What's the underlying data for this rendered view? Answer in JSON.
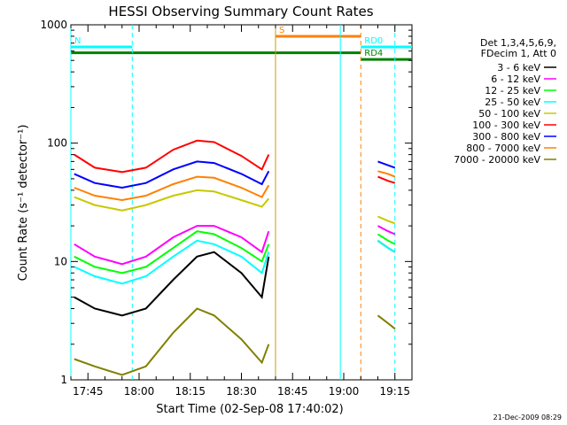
{
  "chart_data": {
    "type": "line",
    "title": "HESSI Observing Summary Count Rates",
    "xlabel": "Start Time (02-Sep-08 17:40:02)",
    "ylabel": "Count Rate (s⁻¹ detector⁻¹)",
    "y_scale": "log",
    "ylim": [
      1,
      1000
    ],
    "xlim": [
      "17:40",
      "19:20"
    ],
    "x_ticks": [
      "17:45",
      "18:00",
      "18:15",
      "18:30",
      "18:45",
      "19:00",
      "19:15"
    ],
    "y_ticks": [
      "1",
      "10",
      "100",
      "1000"
    ],
    "legend_header": [
      "Det 1,3,4,5,6,9,",
      "FDecim 1, Att 0"
    ],
    "legend_position": "right",
    "series": [
      {
        "name": "3 - 6 keV",
        "color": "#000000",
        "x": [
          "17:41",
          "17:47",
          "17:55",
          "18:02",
          "18:10",
          "18:17",
          "18:22",
          "18:30",
          "18:36",
          "18:38",
          "19:07",
          "19:10",
          "19:13",
          "19:15"
        ],
        "y": [
          5,
          4,
          3.5,
          4,
          7,
          11,
          12,
          8,
          5,
          11,
          null,
          15,
          13,
          12
        ]
      },
      {
        "name": "6 - 12 keV",
        "color": "#ff00ff",
        "x": [
          "17:41",
          "17:47",
          "17:55",
          "18:02",
          "18:10",
          "18:17",
          "18:22",
          "18:30",
          "18:36",
          "18:38",
          "19:07",
          "19:10",
          "19:13",
          "19:15"
        ],
        "y": [
          14,
          11,
          9.5,
          11,
          16,
          20,
          20,
          16,
          12,
          18,
          null,
          20,
          18,
          17
        ]
      },
      {
        "name": "12 - 25 keV",
        "color": "#00ff00",
        "x": [
          "17:41",
          "17:47",
          "17:55",
          "18:02",
          "18:10",
          "18:17",
          "18:22",
          "18:30",
          "18:36",
          "18:38",
          "19:07",
          "19:10",
          "19:13",
          "19:15"
        ],
        "y": [
          11,
          9,
          8,
          9,
          13,
          18,
          17,
          13,
          10,
          14,
          null,
          17,
          15,
          14
        ]
      },
      {
        "name": "25 - 50 keV",
        "color": "#00ffff",
        "x": [
          "17:41",
          "17:47",
          "17:55",
          "18:02",
          "18:10",
          "18:17",
          "18:22",
          "18:30",
          "18:36",
          "18:38",
          "19:07",
          "19:10",
          "19:13",
          "19:15"
        ],
        "y": [
          9,
          7.5,
          6.5,
          7.5,
          11,
          15,
          14,
          11,
          8,
          12,
          null,
          15,
          13,
          12
        ]
      },
      {
        "name": "50 - 100 keV",
        "color": "#c8c800",
        "x": [
          "17:41",
          "17:47",
          "17:55",
          "18:02",
          "18:10",
          "18:17",
          "18:22",
          "18:30",
          "18:36",
          "18:38",
          "19:07",
          "19:10",
          "19:13",
          "19:15"
        ],
        "y": [
          35,
          30,
          27,
          30,
          36,
          40,
          39,
          33,
          29,
          34,
          null,
          24,
          22,
          21
        ]
      },
      {
        "name": "100 - 300 keV",
        "color": "#ff0000",
        "x": [
          "17:41",
          "17:47",
          "17:55",
          "18:02",
          "18:10",
          "18:17",
          "18:22",
          "18:30",
          "18:36",
          "18:38",
          "19:07",
          "19:10",
          "19:13",
          "19:15"
        ],
        "y": [
          80,
          62,
          57,
          62,
          88,
          105,
          102,
          78,
          60,
          80,
          null,
          52,
          48,
          46
        ]
      },
      {
        "name": "300 - 800 keV",
        "color": "#0000ff",
        "x": [
          "17:41",
          "17:47",
          "17:55",
          "18:02",
          "18:10",
          "18:17",
          "18:22",
          "18:30",
          "18:36",
          "18:38",
          "19:07",
          "19:10",
          "19:13",
          "19:15"
        ],
        "y": [
          55,
          46,
          42,
          46,
          60,
          70,
          68,
          55,
          45,
          58,
          null,
          70,
          65,
          62
        ]
      },
      {
        "name": "800 - 7000 keV",
        "color": "#ff8000",
        "x": [
          "17:41",
          "17:47",
          "17:55",
          "18:02",
          "18:10",
          "18:17",
          "18:22",
          "18:30",
          "18:36",
          "18:38",
          "19:07",
          "19:10",
          "19:13",
          "19:15"
        ],
        "y": [
          42,
          36,
          33,
          36,
          45,
          52,
          51,
          42,
          35,
          44,
          null,
          58,
          55,
          52
        ]
      },
      {
        "name": "7000 - 20000 keV",
        "color": "#808000",
        "x": [
          "17:41",
          "17:47",
          "17:55",
          "18:02",
          "18:10",
          "18:17",
          "18:22",
          "18:30",
          "18:36",
          "18:38",
          "19:07",
          "19:10",
          "19:13",
          "19:15"
        ],
        "y": [
          1.5,
          1.3,
          1.1,
          1.3,
          2.5,
          4,
          3.5,
          2.2,
          1.4,
          2,
          null,
          3.5,
          3,
          2.7
        ]
      }
    ],
    "flag_bars": [
      {
        "label": "N",
        "color": "#00ffff",
        "x_start": "17:40",
        "x_end": "17:58",
        "y": 650
      },
      {
        "label": "S",
        "color": "#ff8000",
        "x_start": "18:40",
        "x_end": "19:05",
        "y": 800
      },
      {
        "label": "RD0",
        "color": "#00ffff",
        "x_start": "19:05",
        "x_end": "19:20",
        "y": 650
      },
      {
        "label": "RD4",
        "color": "#008000",
        "x_start": "19:05",
        "x_end": "19:20",
        "y": 510
      },
      {
        "label": "",
        "color": "#008000",
        "x_start": "17:40",
        "x_end": "19:05",
        "y": 580
      }
    ],
    "vertical_lines": [
      {
        "x": "17:40",
        "color": "#00ffff",
        "style": "solid"
      },
      {
        "x": "17:58",
        "color": "#00ffff",
        "style": "dashed"
      },
      {
        "x": "18:40",
        "color": "#c8a000",
        "style": "solid"
      },
      {
        "x": "18:59",
        "color": "#00ffff",
        "style": "solid"
      },
      {
        "x": "19:05",
        "color": "#ff8000",
        "style": "dashed"
      },
      {
        "x": "19:15",
        "color": "#00ffff",
        "style": "dashed"
      }
    ],
    "footer_date": "21-Dec-2009 08:29"
  }
}
